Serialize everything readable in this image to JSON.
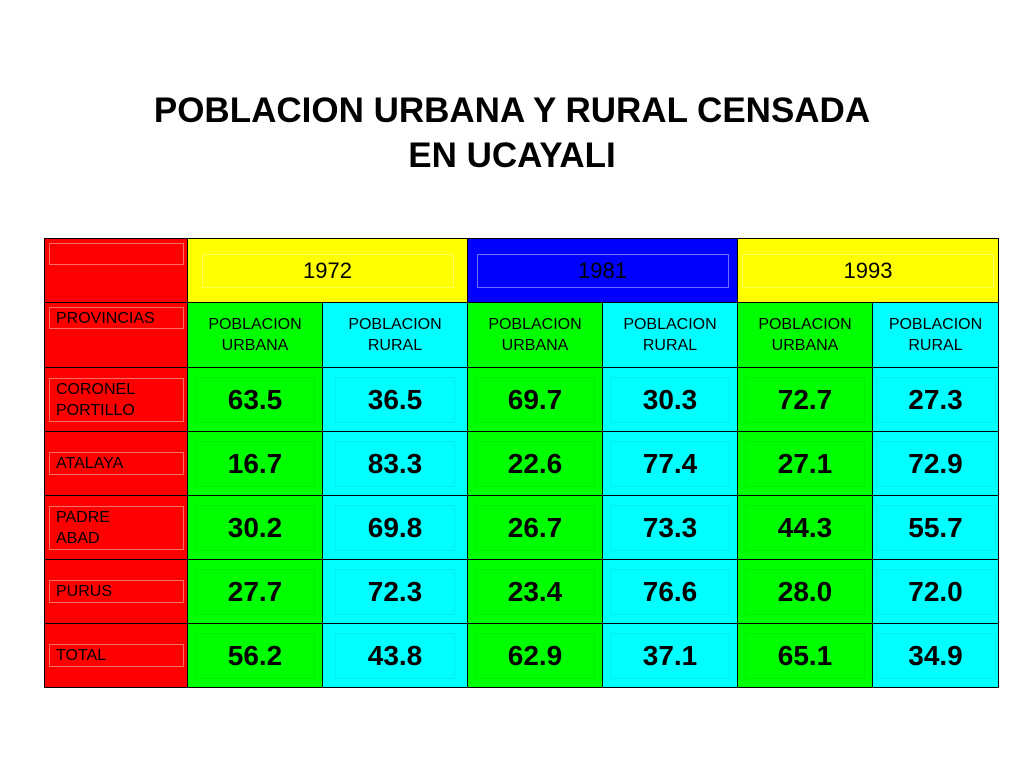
{
  "title": {
    "line1": "POBLACION URBANA Y RURAL CENSADA",
    "line2": "EN UCAYALI"
  },
  "header": {
    "corner_label": "PROVINCIAS",
    "years": [
      "1972",
      "1981",
      "1993"
    ],
    "sub_urbana": [
      "POBLACION",
      "URBANA"
    ],
    "sub_rural": [
      "POBLACION",
      "RURAL"
    ]
  },
  "rows": [
    {
      "province": [
        "CORONEL",
        "PORTILLO"
      ],
      "values": [
        "63.5",
        "36.5",
        "69.7",
        "30.3",
        "72.7",
        "27.3"
      ]
    },
    {
      "province": [
        "ATALAYA"
      ],
      "values": [
        "16.7",
        "83.3",
        "22.6",
        "77.4",
        "27.1",
        "72.9"
      ]
    },
    {
      "province": [
        "PADRE",
        "ABAD"
      ],
      "values": [
        "30.2",
        "69.8",
        "26.7",
        "73.3",
        "44.3",
        "55.7"
      ]
    },
    {
      "province": [
        "PURUS"
      ],
      "values": [
        "27.7",
        "72.3",
        "23.4",
        "76.6",
        "28.0",
        "72.0"
      ]
    },
    {
      "province": [
        "TOTAL"
      ],
      "values": [
        "56.2",
        "43.8",
        "62.9",
        "37.1",
        "65.1",
        "34.9"
      ]
    }
  ],
  "colors": {
    "province_column": "#ff0000",
    "year_1972": "#ffff00",
    "year_1981": "#0000ff",
    "year_1993": "#ffff00",
    "urbana": "#00ff00",
    "rural": "#00ffff"
  }
}
